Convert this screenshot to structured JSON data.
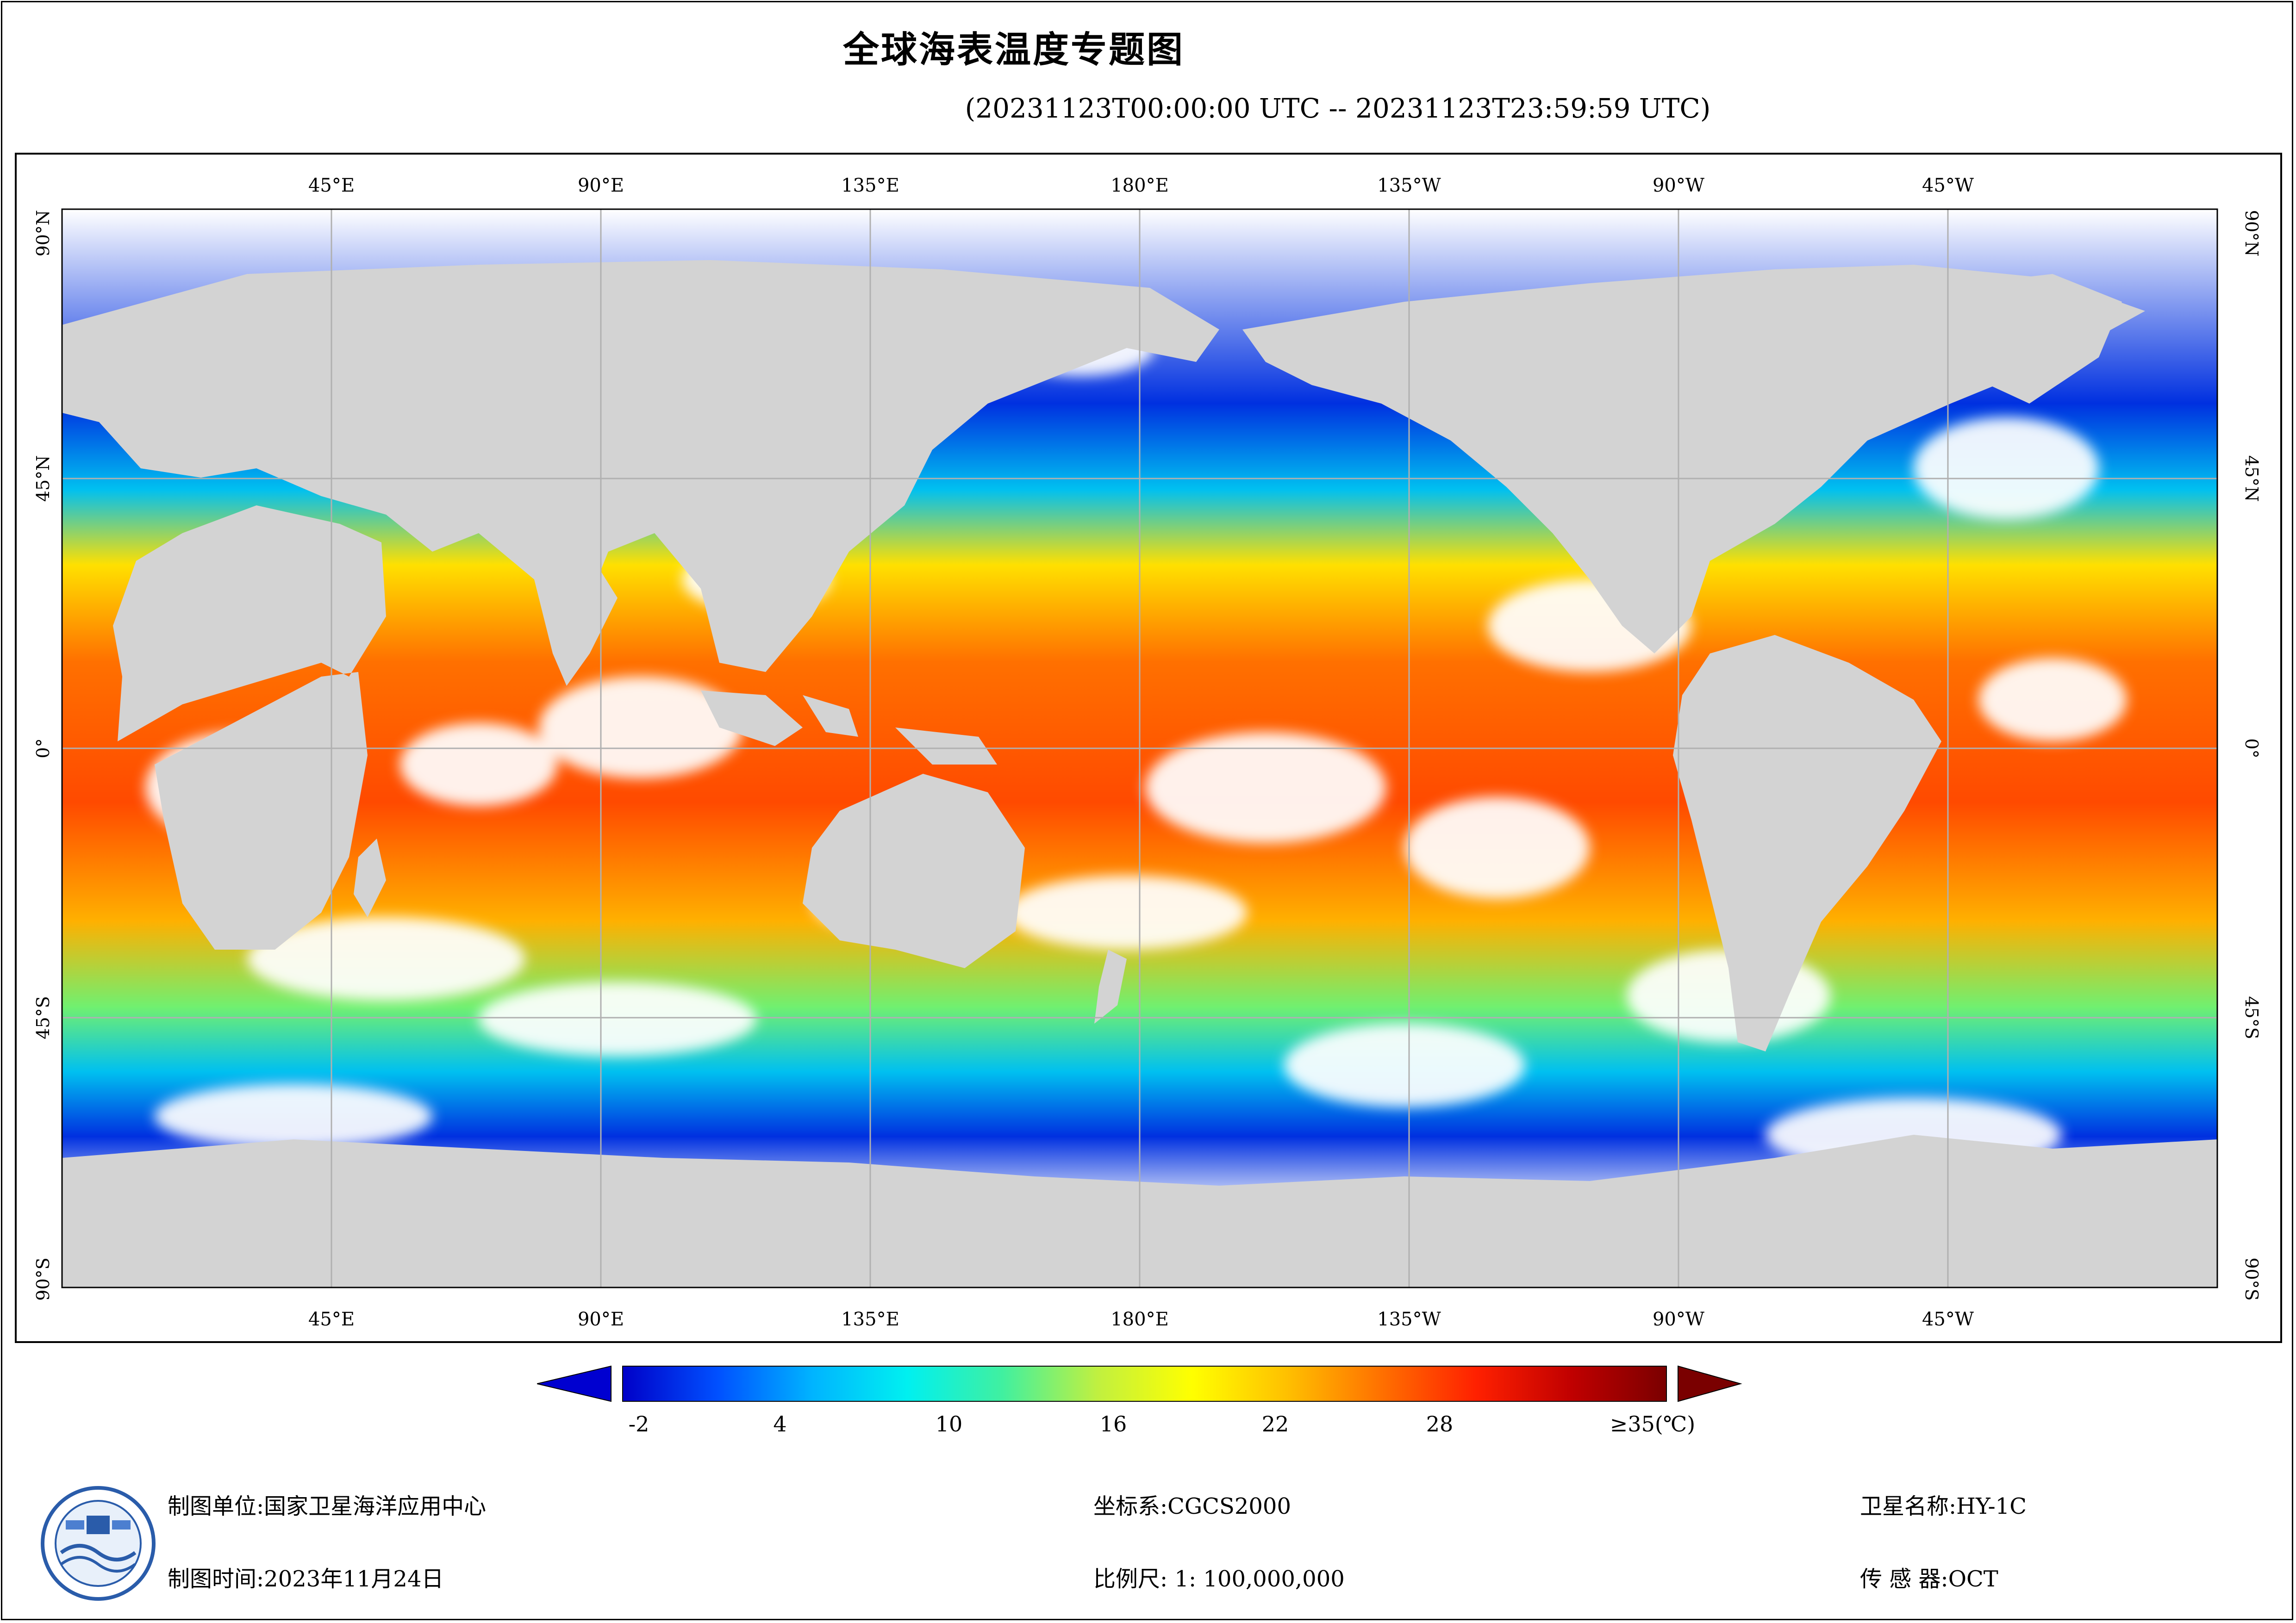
{
  "title": "全球海表温度专题图",
  "subtitle": "(20231123T00:00:00 UTC -- 20231123T23:59:59 UTC)",
  "map": {
    "top_lon_labels": [
      "45°E",
      "90°E",
      "135°E",
      "180°E",
      "135°W",
      "90°W",
      "45°W"
    ],
    "bottom_lon_labels": [
      "45°E",
      "90°E",
      "135°E",
      "180°E",
      "135°W",
      "90°W",
      "45°W"
    ],
    "left_lat_labels": [
      "90°N",
      "45°N",
      "0°",
      "45°S",
      "90°S"
    ],
    "right_lat_labels": [
      "90°N",
      "45°N",
      "0°",
      "45°S",
      "90°S"
    ],
    "land_color": "#d3d3d3",
    "cloud_color": "#ffffff",
    "grid_color": "#b0b0b0"
  },
  "colorbar": {
    "tick_labels": [
      "-2",
      "4",
      "10",
      "16",
      "22",
      "28",
      "≥35(℃)"
    ],
    "min_color": "#0000d0",
    "max_color": "#7a0000",
    "stops": [
      "#0000c8",
      "#0050ff",
      "#00b4ff",
      "#00f0f0",
      "#40f0a0",
      "#c0f040",
      "#ffff00",
      "#ffc000",
      "#ff7000",
      "#ff2000",
      "#c00000",
      "#7a0000"
    ]
  },
  "footer": {
    "org_label": "制图单位:国家卫星海洋应用中心",
    "time_label": "制图时间:2023年11月24日",
    "crs_label": "坐标系:CGCS2000",
    "scale_label": "比例尺: 1: 100,000,000",
    "satellite_label": "卫星名称:HY-1C",
    "sensor_label": "传 感 器:OCT"
  }
}
